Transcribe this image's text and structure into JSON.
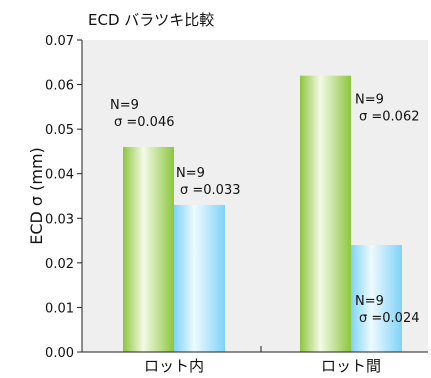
{
  "chart_data": {
    "type": "bar",
    "title": "ECD バラツキ比較",
    "xlabel": "",
    "ylabel": "ECD σ (mm)",
    "ylim": [
      0,
      0.07
    ],
    "yticks": [
      "0.00",
      "0.01",
      "0.02",
      "0.03",
      "0.04",
      "0.05",
      "0.06",
      "0.07"
    ],
    "categories": [
      "ロット内",
      "ロット間"
    ],
    "series": [
      {
        "values": [
          0.046,
          0.062
        ],
        "color": "#8cc63f"
      },
      {
        "values": [
          0.033,
          0.024
        ],
        "color": "#7fd3f7"
      }
    ],
    "annotations": [
      {
        "line1": "N=9",
        "line2": "σ =0.046"
      },
      {
        "line1": "N=9",
        "line2": "σ =0.033"
      },
      {
        "line1": "N=9",
        "line2": "σ =0.062"
      },
      {
        "line1": "N=9",
        "line2": "σ =0.024"
      }
    ],
    "grid": false,
    "legend": "none"
  }
}
